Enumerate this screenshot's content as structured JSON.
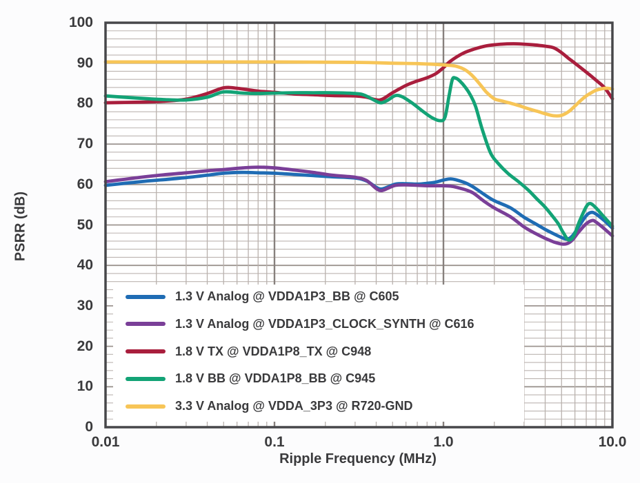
{
  "chart_data": {
    "type": "line",
    "title": "",
    "xlabel": "Ripple Frequency (MHz)",
    "ylabel": "PSRR (dB)",
    "x_scale": "log",
    "x_range": [
      0.01,
      10
    ],
    "y_range": [
      0,
      100
    ],
    "y_major_step": 10,
    "y_minor_step": 2,
    "x_ticks": [
      0.01,
      0.1,
      1,
      10
    ],
    "x_tick_labels": [
      "0.01",
      "0.1",
      "1.0",
      "10.0"
    ],
    "y_ticks": [
      0,
      10,
      20,
      30,
      40,
      50,
      60,
      70,
      80,
      90,
      100
    ],
    "y_tick_labels": [
      "0",
      "10",
      "20",
      "30",
      "40",
      "50",
      "60",
      "70",
      "80",
      "90",
      "100"
    ],
    "grid": {
      "h_minor_color": "#bcb4b0",
      "h_major_color": "#9c948f",
      "v_minor_color": "#b9b1ad",
      "v_decade_color": "#87807d"
    },
    "axis": {
      "border_color": "#47474a",
      "text_color": "#3a3a3c"
    },
    "legend": {
      "position": "bottom-left",
      "background": "#ffffff"
    },
    "series": [
      {
        "label": "1.3 V Analog @ VDDA1P3_BB @ C605",
        "color": "#1f6cb4",
        "points": [
          [
            0.01,
            59.8
          ],
          [
            0.013,
            60.3
          ],
          [
            0.017,
            60.8
          ],
          [
            0.022,
            61.2
          ],
          [
            0.03,
            61.7
          ],
          [
            0.04,
            62.3
          ],
          [
            0.05,
            62.8
          ],
          [
            0.065,
            63.0
          ],
          [
            0.08,
            62.9
          ],
          [
            0.1,
            62.8
          ],
          [
            0.13,
            62.5
          ],
          [
            0.17,
            62.2
          ],
          [
            0.22,
            61.9
          ],
          [
            0.3,
            61.6
          ],
          [
            0.35,
            60.9
          ],
          [
            0.4,
            59.3
          ],
          [
            0.43,
            58.9
          ],
          [
            0.47,
            59.4
          ],
          [
            0.52,
            60.1
          ],
          [
            0.6,
            60.2
          ],
          [
            0.7,
            60.1
          ],
          [
            0.8,
            60.3
          ],
          [
            0.9,
            60.6
          ],
          [
            1.0,
            61.1
          ],
          [
            1.1,
            61.4
          ],
          [
            1.2,
            61.1
          ],
          [
            1.35,
            60.4
          ],
          [
            1.5,
            59.4
          ],
          [
            1.75,
            57.5
          ],
          [
            2.0,
            56.0
          ],
          [
            2.5,
            54.2
          ],
          [
            3.0,
            51.9
          ],
          [
            3.5,
            50.3
          ],
          [
            4.0,
            48.9
          ],
          [
            4.5,
            47.8
          ],
          [
            5.0,
            46.9
          ],
          [
            5.4,
            46.5
          ],
          [
            5.8,
            47.3
          ],
          [
            6.3,
            49.5
          ],
          [
            7.0,
            52.3
          ],
          [
            7.5,
            53.1
          ],
          [
            8.0,
            52.7
          ],
          [
            9.0,
            51.0
          ],
          [
            10.0,
            49.2
          ]
        ]
      },
      {
        "label": "1.3 V Analog @ VDDA1P3_CLOCK_SYNTH @ C616",
        "color": "#7a3f98",
        "points": [
          [
            0.01,
            60.7
          ],
          [
            0.013,
            61.3
          ],
          [
            0.017,
            61.9
          ],
          [
            0.022,
            62.4
          ],
          [
            0.03,
            62.9
          ],
          [
            0.04,
            63.4
          ],
          [
            0.05,
            63.7
          ],
          [
            0.065,
            64.1
          ],
          [
            0.08,
            64.3
          ],
          [
            0.1,
            64.1
          ],
          [
            0.13,
            63.6
          ],
          [
            0.17,
            63.0
          ],
          [
            0.22,
            62.3
          ],
          [
            0.3,
            61.8
          ],
          [
            0.35,
            61.0
          ],
          [
            0.4,
            59.0
          ],
          [
            0.43,
            58.5
          ],
          [
            0.47,
            59.1
          ],
          [
            0.52,
            59.8
          ],
          [
            0.6,
            59.9
          ],
          [
            0.7,
            59.8
          ],
          [
            0.8,
            59.7
          ],
          [
            0.9,
            59.7
          ],
          [
            1.0,
            59.7
          ],
          [
            1.1,
            59.6
          ],
          [
            1.2,
            59.3
          ],
          [
            1.35,
            58.7
          ],
          [
            1.5,
            57.9
          ],
          [
            1.75,
            55.8
          ],
          [
            2.0,
            54.2
          ],
          [
            2.5,
            52.0
          ],
          [
            3.0,
            49.5
          ],
          [
            3.5,
            47.9
          ],
          [
            4.0,
            46.7
          ],
          [
            4.5,
            45.8
          ],
          [
            5.0,
            45.3
          ],
          [
            5.4,
            45.4
          ],
          [
            5.8,
            46.3
          ],
          [
            6.3,
            48.2
          ],
          [
            7.0,
            50.3
          ],
          [
            7.6,
            51.1
          ],
          [
            8.0,
            50.7
          ],
          [
            9.0,
            49.0
          ],
          [
            10.0,
            47.3
          ]
        ]
      },
      {
        "label": "1.8 V TX @ VDDA1P8_TX @ C948",
        "color": "#a91e3d",
        "points": [
          [
            0.01,
            80.2
          ],
          [
            0.013,
            80.3
          ],
          [
            0.017,
            80.4
          ],
          [
            0.022,
            80.6
          ],
          [
            0.03,
            81.1
          ],
          [
            0.04,
            82.5
          ],
          [
            0.05,
            83.9
          ],
          [
            0.06,
            83.8
          ],
          [
            0.08,
            83.1
          ],
          [
            0.1,
            82.8
          ],
          [
            0.13,
            82.4
          ],
          [
            0.17,
            82.2
          ],
          [
            0.22,
            82.0
          ],
          [
            0.3,
            81.9
          ],
          [
            0.35,
            81.6
          ],
          [
            0.42,
            80.9
          ],
          [
            0.5,
            82.7
          ],
          [
            0.6,
            84.5
          ],
          [
            0.7,
            85.6
          ],
          [
            0.8,
            86.4
          ],
          [
            0.9,
            87.4
          ],
          [
            1.0,
            88.9
          ],
          [
            1.1,
            90.5
          ],
          [
            1.3,
            92.4
          ],
          [
            1.5,
            93.4
          ],
          [
            1.8,
            94.3
          ],
          [
            2.2,
            94.7
          ],
          [
            2.6,
            94.8
          ],
          [
            3.0,
            94.7
          ],
          [
            3.5,
            94.5
          ],
          [
            4.0,
            94.2
          ],
          [
            4.5,
            93.8
          ],
          [
            5.0,
            92.6
          ],
          [
            5.5,
            91.2
          ],
          [
            6.0,
            90.0
          ],
          [
            7.0,
            87.8
          ],
          [
            8.0,
            85.8
          ],
          [
            9.0,
            83.9
          ],
          [
            10.0,
            81.2
          ]
        ]
      },
      {
        "label": "1.8 V BB @ VDDA1P8_BB @ C945",
        "color": "#13a376",
        "points": [
          [
            0.01,
            81.9
          ],
          [
            0.015,
            81.4
          ],
          [
            0.022,
            81.0
          ],
          [
            0.03,
            80.9
          ],
          [
            0.04,
            81.6
          ],
          [
            0.05,
            82.9
          ],
          [
            0.065,
            82.6
          ],
          [
            0.08,
            82.5
          ],
          [
            0.1,
            82.6
          ],
          [
            0.13,
            82.7
          ],
          [
            0.17,
            82.7
          ],
          [
            0.22,
            82.7
          ],
          [
            0.3,
            82.5
          ],
          [
            0.34,
            82.1
          ],
          [
            0.4,
            80.6
          ],
          [
            0.43,
            80.2
          ],
          [
            0.47,
            80.9
          ],
          [
            0.52,
            82.0
          ],
          [
            0.57,
            81.7
          ],
          [
            0.65,
            80.2
          ],
          [
            0.75,
            78.2
          ],
          [
            0.85,
            76.6
          ],
          [
            0.95,
            75.8
          ],
          [
            1.02,
            76.6
          ],
          [
            1.08,
            82.0
          ],
          [
            1.13,
            86.0
          ],
          [
            1.18,
            86.3
          ],
          [
            1.25,
            85.6
          ],
          [
            1.35,
            84.0
          ],
          [
            1.45,
            82.0
          ],
          [
            1.55,
            79.3
          ],
          [
            1.7,
            73.5
          ],
          [
            1.9,
            67.8
          ],
          [
            2.1,
            65.3
          ],
          [
            2.4,
            62.8
          ],
          [
            2.8,
            60.6
          ],
          [
            3.2,
            58.5
          ],
          [
            3.6,
            56.3
          ],
          [
            4.0,
            54.4
          ],
          [
            4.4,
            52.3
          ],
          [
            4.8,
            50.2
          ],
          [
            5.1,
            48.2
          ],
          [
            5.5,
            46.3
          ],
          [
            5.9,
            47.3
          ],
          [
            6.4,
            51.0
          ],
          [
            7.0,
            54.5
          ],
          [
            7.4,
            55.3
          ],
          [
            8.0,
            54.2
          ],
          [
            9.0,
            51.8
          ],
          [
            10.0,
            49.7
          ]
        ]
      },
      {
        "label": "3.3 V Analog @ VDDA_3P3 @ R720-GND",
        "color": "#f7c557",
        "points": [
          [
            0.01,
            90.3
          ],
          [
            0.05,
            90.3
          ],
          [
            0.1,
            90.3
          ],
          [
            0.3,
            90.2
          ],
          [
            0.5,
            90.0
          ],
          [
            0.7,
            89.9
          ],
          [
            0.9,
            89.7
          ],
          [
            1.05,
            89.5
          ],
          [
            1.2,
            89.2
          ],
          [
            1.35,
            88.3
          ],
          [
            1.5,
            86.7
          ],
          [
            1.65,
            84.7
          ],
          [
            1.8,
            82.8
          ],
          [
            2.0,
            81.2
          ],
          [
            2.2,
            80.7
          ],
          [
            2.5,
            80.1
          ],
          [
            2.8,
            79.5
          ],
          [
            3.2,
            78.7
          ],
          [
            3.6,
            78.1
          ],
          [
            4.0,
            77.5
          ],
          [
            4.5,
            77.0
          ],
          [
            5.0,
            77.1
          ],
          [
            5.5,
            78.0
          ],
          [
            6.0,
            79.4
          ],
          [
            6.5,
            80.8
          ],
          [
            7.0,
            81.9
          ],
          [
            7.5,
            82.7
          ],
          [
            8.0,
            83.3
          ],
          [
            8.7,
            83.7
          ],
          [
            9.4,
            83.8
          ],
          [
            10.0,
            83.6
          ]
        ]
      }
    ]
  }
}
